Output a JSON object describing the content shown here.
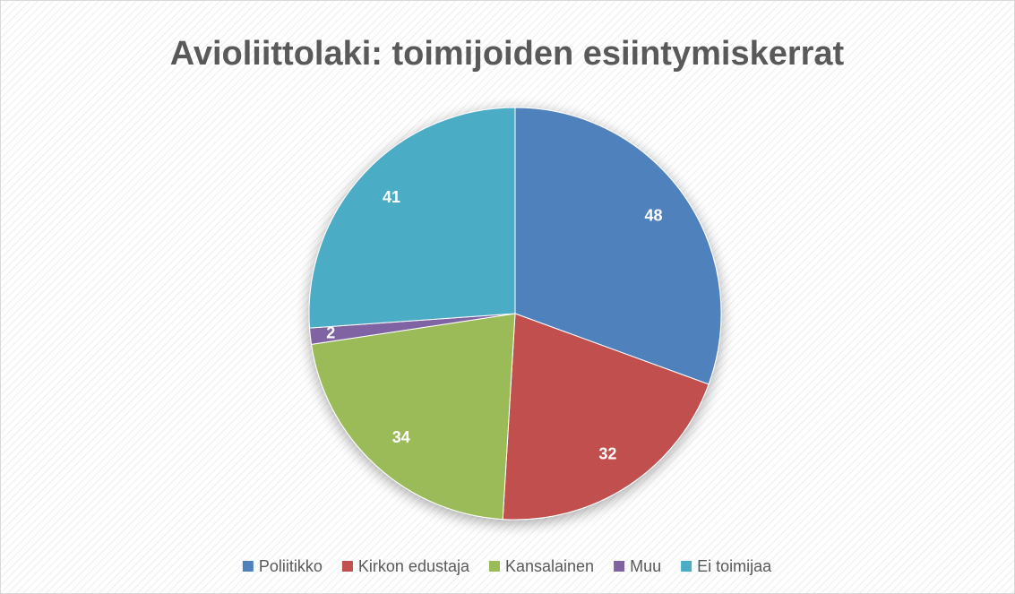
{
  "chart_data": {
    "type": "pie",
    "title": "Avioliittolaki: toimijoiden esiintymiskerrat",
    "categories": [
      "Poliitikko",
      "Kirkon edustaja",
      "Kansalainen",
      "Muu",
      "Ei toimijaa"
    ],
    "values": [
      48,
      32,
      34,
      2,
      41
    ],
    "colors": [
      "#4f81bd",
      "#c0504d",
      "#9bbb59",
      "#8064a2",
      "#4bacc6"
    ],
    "legend": "bottom"
  }
}
